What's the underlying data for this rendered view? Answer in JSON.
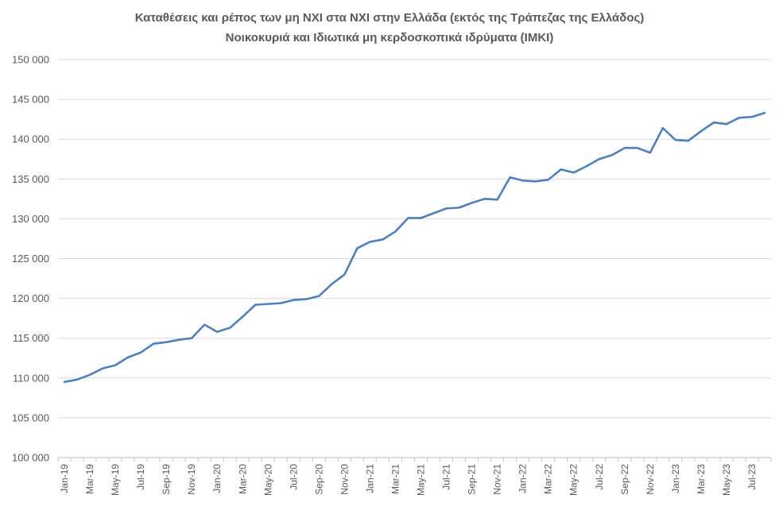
{
  "chart_data": {
    "type": "line",
    "title": "Καταθέσεις και ρέπος των μη ΝΧΙ στα ΝΧΙ στην Ελλάδα (εκτός της Τράπεζας της Ελλάδος)",
    "subtitle": "Νοικοκυριά και Ιδιωτικά μη κερδοσκοπικά ιδρύματα (ΙΜΚΙ)",
    "ylim": [
      100000,
      150000
    ],
    "yticks": [
      "100 000",
      "105 000",
      "110 000",
      "115 000",
      "120 000",
      "125 000",
      "130 000",
      "135 000",
      "140 000",
      "145 000",
      "150 000"
    ],
    "ytick_values": [
      100000,
      105000,
      110000,
      115000,
      120000,
      125000,
      130000,
      135000,
      140000,
      145000,
      150000
    ],
    "xticks": [
      "Jan-19",
      "Mar-19",
      "May-19",
      "Jul-19",
      "Sep-19",
      "Nov-19",
      "Jan-20",
      "Mar-20",
      "May-20",
      "Jul-20",
      "Sep-20",
      "Nov-20",
      "Jan-21",
      "Mar-21",
      "May-21",
      "Jul-21",
      "Sep-21",
      "Nov-21",
      "Jan-22",
      "Mar-22",
      "May-22",
      "Jul-22",
      "Sep-22",
      "Nov-22",
      "Jan-23",
      "Mar-23",
      "May-23",
      "Jul-23"
    ],
    "series": [
      {
        "name": "Νοικοκυριά και ΙΜΚΙ",
        "color": "#4f7fbd",
        "values": [
          109500,
          109800,
          110400,
          111200,
          111600,
          112600,
          113200,
          114300,
          114500,
          114800,
          115000,
          116700,
          115800,
          116300,
          117700,
          119200,
          119300,
          119400,
          119800,
          119900,
          120300,
          121800,
          123000,
          126300,
          127100,
          127400,
          128400,
          130100,
          130100,
          130700,
          131300,
          131400,
          132000,
          132500,
          132400,
          135200,
          134800,
          134700,
          134900,
          136200,
          135800,
          136600,
          137500,
          138000,
          138900,
          138900,
          138300,
          141400,
          139900,
          139800,
          141000,
          142100,
          141900,
          142700,
          142800,
          143300
        ]
      }
    ]
  }
}
